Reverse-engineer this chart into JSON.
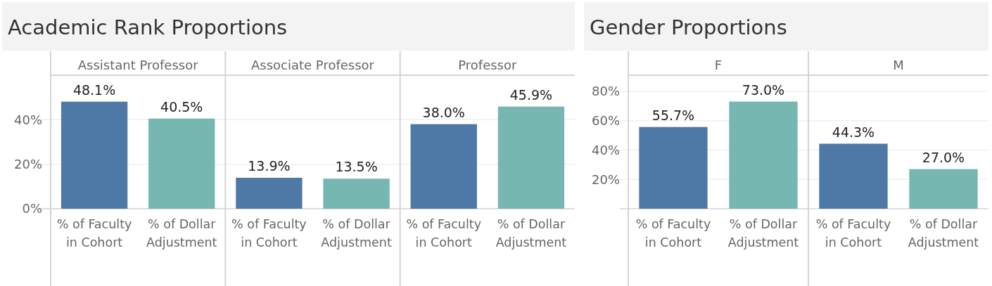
{
  "chart_data": [
    {
      "type": "bar",
      "title": "Academic Rank Proportions",
      "annotations": [
        "Assistant Professor",
        "Associate Professor",
        "Professor"
      ],
      "categories": [
        "% of Faculty in Cohort",
        "% of Dollar Adjustment",
        "% of Faculty in Cohort",
        "% of Dollar Adjustment",
        "% of Faculty in Cohort",
        "% of Dollar Adjustment"
      ],
      "values": [
        48.1,
        40.5,
        13.9,
        13.5,
        38.0,
        45.9
      ],
      "colors": [
        "#4e79a7",
        "#76b7b2",
        "#4e79a7",
        "#76b7b2",
        "#4e79a7",
        "#76b7b2"
      ],
      "value_labels": [
        "48.1%",
        "40.5%",
        "13.9%",
        "13.5%",
        "38.0%",
        "45.9%"
      ],
      "ylim": [
        0,
        60
      ],
      "yticks": [
        {
          "value": 0,
          "label": "0%"
        },
        {
          "value": 20,
          "label": "20%"
        },
        {
          "value": 40,
          "label": "40%"
        }
      ],
      "grid": "y"
    },
    {
      "type": "bar",
      "title": "Gender Proportions",
      "annotations": [
        "F",
        "M"
      ],
      "categories": [
        "% of Faculty in Cohort",
        "% of Dollar Adjustment",
        "% of Faculty in Cohort",
        "% of Dollar Adjustment"
      ],
      "values": [
        55.7,
        73.0,
        44.3,
        27.0
      ],
      "colors": [
        "#4e79a7",
        "#76b7b2",
        "#4e79a7",
        "#76b7b2"
      ],
      "value_labels": [
        "55.7%",
        "73.0%",
        "44.3%",
        "27.0%"
      ],
      "ylim": [
        0,
        91
      ],
      "yticks": [
        {
          "value": 20,
          "label": "20%"
        },
        {
          "value": 40,
          "label": "40%"
        },
        {
          "value": 60,
          "label": "60%"
        },
        {
          "value": 80,
          "label": "80%"
        }
      ],
      "grid": "y"
    }
  ]
}
